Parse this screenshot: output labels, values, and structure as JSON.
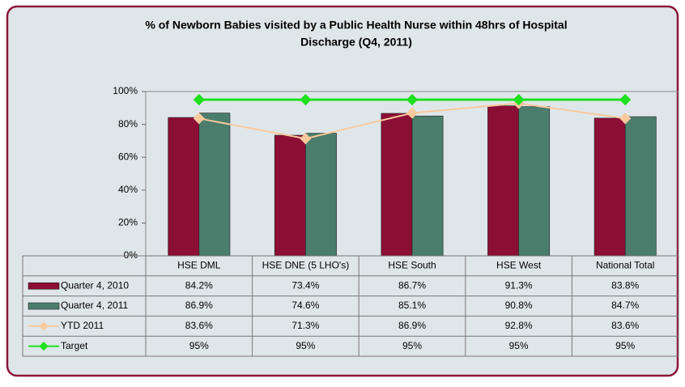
{
  "chart_data": {
    "type": "bar",
    "title": "% of Newborn Babies visited by a Public Health Nurse within 48hrs of Hospital",
    "subtitle": "Discharge (Q4, 2011)",
    "categories": [
      "HSE DML",
      "HSE DNE (5 LHO's)",
      "HSE South",
      "HSE West",
      "National Total"
    ],
    "series": [
      {
        "name": "Quarter 4, 2010",
        "type": "bar",
        "color": "#8b0e35",
        "values": [
          84.2,
          73.4,
          86.7,
          91.3,
          83.8
        ],
        "value_labels": [
          "84.2%",
          "73.4%",
          "86.7%",
          "91.3%",
          "83.8%"
        ]
      },
      {
        "name": "Quarter 4, 2011",
        "type": "bar",
        "color": "#4b7d6c",
        "values": [
          86.9,
          74.6,
          85.1,
          90.8,
          84.7
        ],
        "value_labels": [
          "86.9%",
          "74.6%",
          "85.1%",
          "90.8%",
          "84.7%"
        ]
      },
      {
        "name": "YTD 2011",
        "type": "line",
        "color": "#fac99c",
        "values": [
          83.6,
          71.3,
          86.9,
          92.8,
          83.6
        ],
        "value_labels": [
          "83.6%",
          "71.3%",
          "86.9%",
          "92.8%",
          "83.6%"
        ]
      },
      {
        "name": "Target",
        "type": "line",
        "color": "#1ee01e",
        "values": [
          95,
          95,
          95,
          95,
          95
        ],
        "value_labels": [
          "95%",
          "95%",
          "95%",
          "95%",
          "95%"
        ]
      }
    ],
    "ylim": [
      0,
      100
    ],
    "yticks": [
      {
        "value": 0,
        "label": "0%"
      },
      {
        "value": 20,
        "label": "20%"
      },
      {
        "value": 40,
        "label": "40%"
      },
      {
        "value": 60,
        "label": "60%"
      },
      {
        "value": 80,
        "label": "80%"
      },
      {
        "value": 100,
        "label": "100%"
      }
    ]
  }
}
